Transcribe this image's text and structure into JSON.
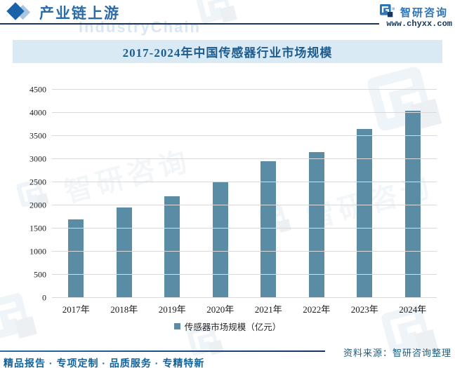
{
  "header": {
    "section_title": "产业链上游",
    "brand_name": "智研咨询",
    "website": "www.chyxx.com",
    "watermark_en": "IndustryChain"
  },
  "watermark": {
    "text": "智研咨询"
  },
  "chart_data": {
    "type": "bar",
    "title": "2017-2024年中国传感器行业市场规模",
    "categories": [
      "2017年",
      "2018年",
      "2019年",
      "2020年",
      "2021年",
      "2022年",
      "2023年",
      "2024年"
    ],
    "values": [
      1700,
      1950,
      2200,
      2500,
      2950,
      3150,
      3650,
      4050
    ],
    "series_name": "传感器市场规模（亿元）",
    "ylim": [
      0,
      4500
    ],
    "ytick_step": 500,
    "grid": true,
    "legend_position": "bottom",
    "bar_color": "#5b8ca5",
    "gridline_color": "#d9d9d9"
  },
  "footer": {
    "source": "资料来源：智研咨询整理",
    "tagline": "精品报告 · 专项定制 · 品质服务 · 专精特新"
  }
}
